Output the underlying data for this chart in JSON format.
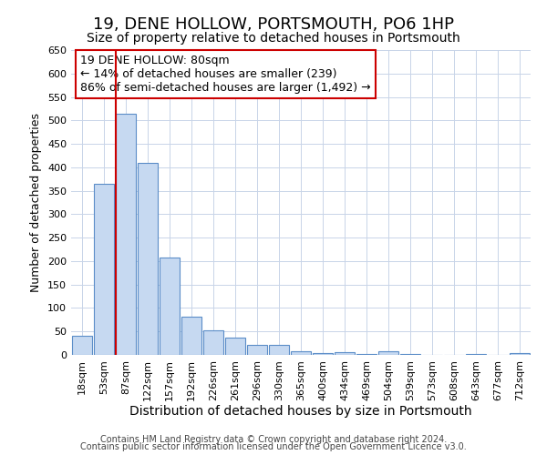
{
  "title": "19, DENE HOLLOW, PORTSMOUTH, PO6 1HP",
  "subtitle": "Size of property relative to detached houses in Portsmouth",
  "xlabel": "Distribution of detached houses by size in Portsmouth",
  "ylabel": "Number of detached properties",
  "footer_line1": "Contains HM Land Registry data © Crown copyright and database right 2024.",
  "footer_line2": "Contains public sector information licensed under the Open Government Licence v3.0.",
  "annotation_title": "19 DENE HOLLOW: 80sqm",
  "annotation_line1": "← 14% of detached houses are smaller (239)",
  "annotation_line2": "86% of semi-detached houses are larger (1,492) →",
  "bar_labels": [
    "18sqm",
    "53sqm",
    "87sqm",
    "122sqm",
    "157sqm",
    "192sqm",
    "226sqm",
    "261sqm",
    "296sqm",
    "330sqm",
    "365sqm",
    "400sqm",
    "434sqm",
    "469sqm",
    "504sqm",
    "539sqm",
    "573sqm",
    "608sqm",
    "643sqm",
    "677sqm",
    "712sqm"
  ],
  "bar_heights": [
    40,
    365,
    515,
    410,
    207,
    82,
    53,
    37,
    21,
    21,
    8,
    3,
    6,
    1,
    7,
    1,
    0,
    0,
    2,
    0,
    3
  ],
  "bar_color": "#c6d9f1",
  "bar_edge_color": "#5b8dc8",
  "vline_color": "#cc0000",
  "vline_x_idx": 2,
  "annotation_box_color": "#cc0000",
  "annotation_fill": "#ffffff",
  "background_color": "#ffffff",
  "grid_color": "#c8d4e8",
  "ylim": [
    0,
    650
  ],
  "yticks": [
    0,
    50,
    100,
    150,
    200,
    250,
    300,
    350,
    400,
    450,
    500,
    550,
    600,
    650
  ],
  "title_fontsize": 13,
  "subtitle_fontsize": 10,
  "ylabel_fontsize": 9,
  "xlabel_fontsize": 10,
  "tick_fontsize": 8,
  "annot_fontsize": 9,
  "footer_fontsize": 7
}
